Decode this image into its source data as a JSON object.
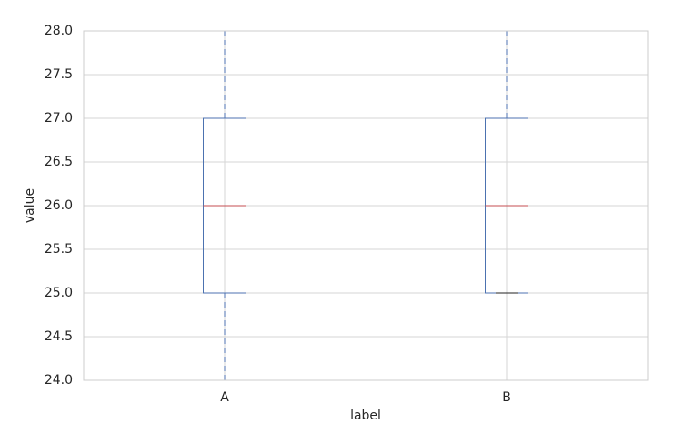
{
  "chart_data": {
    "type": "box",
    "x_label": "label",
    "y_label": "value",
    "categories": [
      "A",
      "B"
    ],
    "boxes": [
      {
        "whislo": 24,
        "q1": 25,
        "median": 26,
        "q3": 27,
        "whishi": 28
      },
      {
        "whislo": 25,
        "q1": 25,
        "median": 26,
        "q3": 27,
        "whishi": 28
      }
    ],
    "box_color": "#4c72b0",
    "median_color": "#c44e52",
    "cap_color": "#222222",
    "ylim": [
      24,
      28
    ],
    "yticks": [
      {
        "value": 24,
        "label": "24.0"
      },
      24.5,
      {
        "value": 25,
        "label": "25.0"
      },
      25.5,
      {
        "value": 26,
        "label": "26.0"
      },
      26.5,
      {
        "value": 27,
        "label": "27.0"
      },
      27.5,
      {
        "value": 28,
        "label": "28.0"
      }
    ],
    "grid": true
  }
}
